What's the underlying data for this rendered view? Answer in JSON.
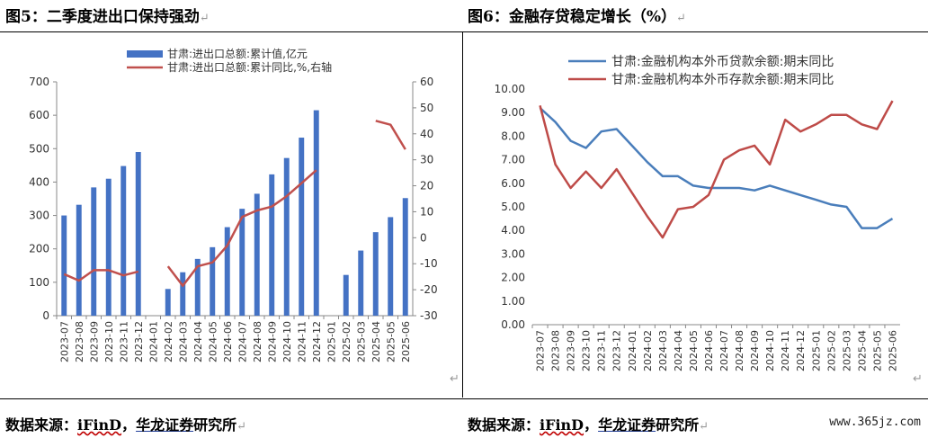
{
  "left": {
    "title": "图5：二季度进出口保持强劲",
    "source_label": "数据来源：",
    "source_ifind": "iFinD",
    "source_sep": "，",
    "source_org": "华龙证券",
    "source_tail": "研究所"
  },
  "right": {
    "title": "图6：金融存贷稳定增长（%）",
    "source_label": "数据来源：",
    "source_ifind": "iFinD",
    "source_sep": "，",
    "source_org": "华龙证券",
    "source_tail": "研究所"
  },
  "return_mark": "↵",
  "watermark": "www.365jz.com",
  "chart_data": [
    {
      "type": "bar",
      "categories": [
        "2023-07",
        "2023-08",
        "2023-09",
        "2023-10",
        "2023-11",
        "2023-12",
        "2024-01",
        "2024-02",
        "2024-03",
        "2024-04",
        "2024-05",
        "2024-06",
        "2024-07",
        "2024-08",
        "2024-09",
        "2024-10",
        "2024-11",
        "2024-12",
        "2025-01",
        "2025-02",
        "2025-03",
        "2025-04",
        "2025-05",
        "2025-06"
      ],
      "series": [
        {
          "name": "甘肃:进出口总额:累计值,亿元",
          "kind": "bar",
          "axis": "left",
          "color": "#4472c4",
          "values": [
            300,
            332,
            384,
            410,
            448,
            490,
            null,
            80,
            130,
            170,
            205,
            265,
            320,
            365,
            423,
            472,
            533,
            615,
            null,
            122,
            195,
            250,
            295,
            352
          ]
        },
        {
          "name": "甘肃:进出口总额:累计同比,%,右轴",
          "kind": "line",
          "axis": "right",
          "color": "#c0504d",
          "values": [
            -14,
            -16.5,
            -12.5,
            -12.5,
            -14.5,
            -13,
            null,
            -11,
            -18.5,
            -11,
            -9.5,
            -3,
            8,
            10.5,
            12,
            16,
            21,
            26,
            null,
            55,
            null,
            45,
            43.5,
            34
          ]
        }
      ],
      "ylim_left": [
        0,
        700
      ],
      "yticks_left": [
        0,
        100,
        200,
        300,
        400,
        500,
        600,
        700
      ],
      "ylim_right": [
        -30,
        60
      ],
      "yticks_right": [
        -30,
        -20,
        -10,
        0,
        10,
        20,
        30,
        40,
        50,
        60
      ],
      "legend_position": "top-right"
    },
    {
      "type": "line",
      "categories": [
        "2023-07",
        "2023-08",
        "2023-09",
        "2023-10",
        "2023-11",
        "2023-12",
        "2024-01",
        "2024-02",
        "2024-03",
        "2024-04",
        "2024-05",
        "2024-06",
        "2024-07",
        "2024-08",
        "2024-09",
        "2024-10",
        "2024-11",
        "2024-12",
        "2025-01",
        "2025-02",
        "2025-03",
        "2025-04",
        "2025-05",
        "2025-06"
      ],
      "series": [
        {
          "name": "甘肃:金融机构本外币贷款余额:期末同比",
          "color": "#4a7ebb",
          "values": [
            9.2,
            8.6,
            7.8,
            7.5,
            8.2,
            8.3,
            7.6,
            6.9,
            6.3,
            6.3,
            5.9,
            5.8,
            5.8,
            5.8,
            5.7,
            5.9,
            5.7,
            5.5,
            5.3,
            5.1,
            5.0,
            4.1,
            4.1,
            4.5
          ]
        },
        {
          "name": "甘肃:金融机构本外币存款余额:期末同比",
          "color": "#be4b48",
          "values": [
            9.3,
            6.8,
            5.8,
            6.5,
            5.8,
            6.6,
            5.6,
            4.6,
            3.7,
            4.9,
            5.0,
            5.5,
            7.0,
            7.4,
            7.6,
            6.8,
            8.7,
            8.2,
            8.5,
            8.9,
            8.9,
            8.5,
            8.3,
            9.5
          ]
        }
      ],
      "ylim": [
        0,
        10
      ],
      "yticks": [
        "0.00",
        "1.00",
        "2.00",
        "3.00",
        "4.00",
        "5.00",
        "6.00",
        "7.00",
        "8.00",
        "9.00",
        "10.00"
      ],
      "legend_position": "top"
    }
  ]
}
